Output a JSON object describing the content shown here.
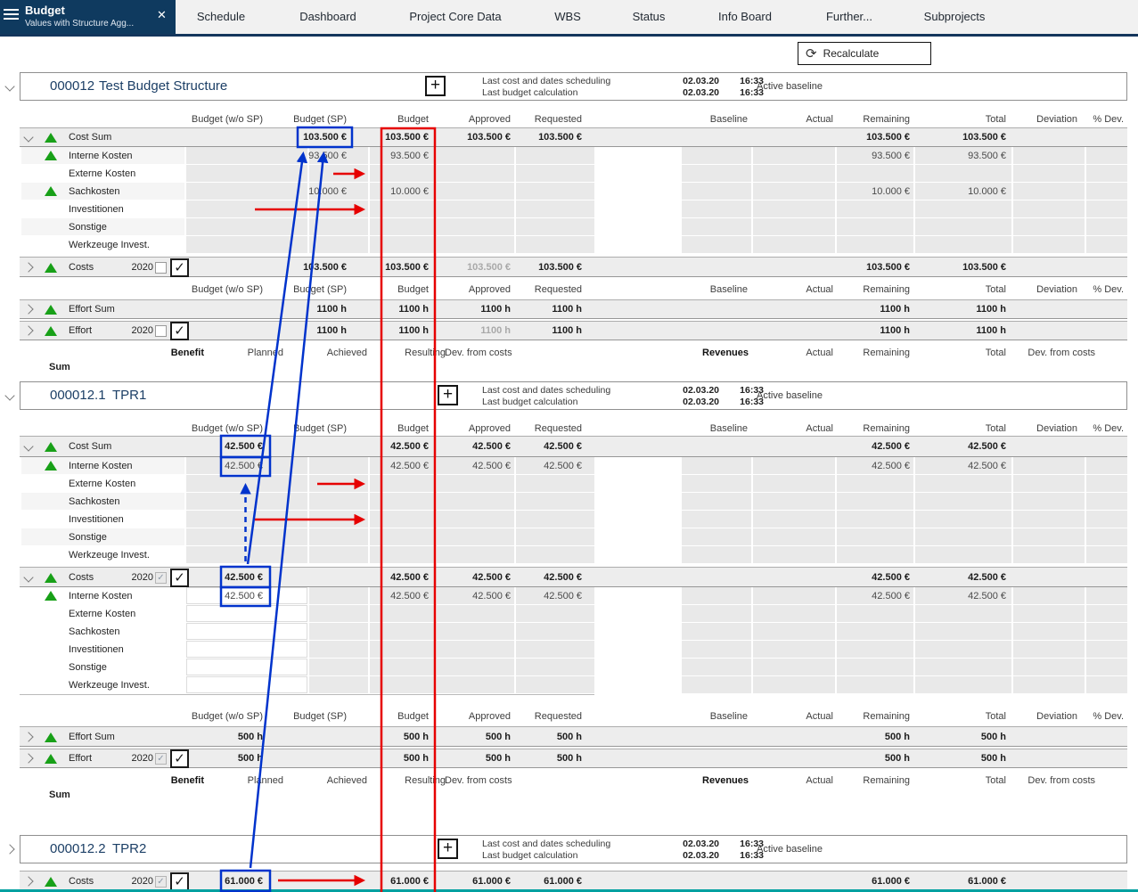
{
  "nav": {
    "active_tab": {
      "title": "Budget",
      "subtitle": "Values with Structure Agg..."
    },
    "tabs": [
      "Schedule",
      "Dashboard",
      "Project Core Data",
      "WBS",
      "Status",
      "Info Board",
      "Further...",
      "Subprojects"
    ]
  },
  "toolbar": {
    "recalculate": "Recalculate"
  },
  "columns": {
    "wosp": "Budget (w/o SP)",
    "sp": "Budget (SP)",
    "budget": "Budget",
    "approved": "Approved",
    "requested": "Requested",
    "baseline": "Baseline",
    "actual": "Actual",
    "remaining": "Remaining",
    "total": "Total",
    "deviation": "Deviation",
    "pdev": "% Dev."
  },
  "benefit": {
    "benefit": "Benefit",
    "planned": "Planned",
    "achieved": "Achieved",
    "resulting": "Resulting",
    "dev_from_costs": "Dev. from costs",
    "revenues": "Revenues",
    "actual": "Actual",
    "remaining": "Remaining",
    "total": "Total",
    "dev_from_costs_right": "Dev. from costs",
    "sum": "Sum"
  },
  "info": {
    "scheduling_label": "Last cost and dates scheduling",
    "calculation_label": "Last budget calculation",
    "baseline_label": "Active baseline",
    "date": "02.03.20",
    "time": "16:33"
  },
  "icons": {
    "menu": "hamburger",
    "close": "✕",
    "plus": "+",
    "recalculate": "⟳",
    "chevron_down": "v",
    "chevron_right": ">",
    "triangle_up": "▲",
    "checkmark": "✓"
  },
  "colors": {
    "annotation_red": "#e60000",
    "annotation_blue": "#0033cc",
    "triangle_green": "#18a018",
    "nav_navy": "#0f3a5f",
    "teal_bar": "#00a0a0"
  },
  "projects": [
    {
      "id": "000012",
      "name": "Test Budget Structure",
      "expanded": true,
      "rows": [
        {
          "kind": "columns_header"
        },
        {
          "kind": "row",
          "style": "sum",
          "chevron": "down",
          "triangle": true,
          "label": "Cost Sum",
          "values": {
            "sp": "103.500 €",
            "budget": "103.500 €",
            "approved": "103.500 €",
            "requested": "103.500 €",
            "remaining": "103.500 €",
            "total": "103.500 €"
          }
        },
        {
          "kind": "row",
          "style": "sub",
          "triangle": true,
          "label": "Interne Kosten",
          "values": {
            "sp": "93.500 €",
            "budget": "93.500 €",
            "remaining": "93.500 €",
            "total": "93.500 €"
          }
        },
        {
          "kind": "row",
          "style": "sub",
          "label": "Externe Kosten",
          "values": {}
        },
        {
          "kind": "row",
          "style": "sub",
          "triangle": true,
          "label": "Sachkosten",
          "values": {
            "sp": "10.000 €",
            "budget": "10.000 €",
            "remaining": "10.000 €",
            "total": "10.000 €"
          }
        },
        {
          "kind": "row",
          "style": "sub",
          "label": "Investitionen",
          "values": {}
        },
        {
          "kind": "row",
          "style": "sub",
          "label": "Sonstige",
          "values": {}
        },
        {
          "kind": "row",
          "style": "sub",
          "label": "Werkzeuge Invest.",
          "values": {}
        },
        {
          "kind": "row",
          "style": "sum",
          "chevron": "right",
          "triangle": true,
          "label": "Costs",
          "year": "2020",
          "checkbox_small": "unchecked",
          "checkbox_large": "checked",
          "approved_muted": true,
          "values": {
            "sp": "103.500 €",
            "budget": "103.500 €",
            "approved": "103.500 €",
            "requested": "103.500 €",
            "remaining": "103.500 €",
            "total": "103.500 €"
          }
        },
        {
          "kind": "columns_header"
        },
        {
          "kind": "row",
          "style": "sum",
          "chevron": "right",
          "triangle": true,
          "label": "Effort Sum",
          "values": {
            "sp": "1100 h",
            "budget": "1100 h",
            "approved": "1100 h",
            "requested": "1100 h",
            "remaining": "1100 h",
            "total": "1100 h"
          }
        },
        {
          "kind": "row",
          "style": "sum",
          "chevron": "right",
          "triangle": true,
          "label": "Effort",
          "year": "2020",
          "checkbox_small": "unchecked",
          "checkbox_large": "checked",
          "approved_muted": true,
          "values": {
            "sp": "1100 h",
            "budget": "1100 h",
            "approved": "1100 h",
            "requested": "1100 h",
            "remaining": "1100 h",
            "total": "1100 h"
          }
        },
        {
          "kind": "benefit_header"
        },
        {
          "kind": "sum_label"
        }
      ]
    },
    {
      "id": "000012.1",
      "name": "TPR1",
      "expanded": true,
      "rows": [
        {
          "kind": "columns_header"
        },
        {
          "kind": "row",
          "style": "sum",
          "chevron": "down",
          "triangle": true,
          "label": "Cost Sum",
          "values": {
            "wosp": "42.500 €",
            "budget": "42.500 €",
            "approved": "42.500 €",
            "requested": "42.500 €",
            "remaining": "42.500 €",
            "total": "42.500 €"
          }
        },
        {
          "kind": "row",
          "style": "sub",
          "triangle": true,
          "label": "Interne Kosten",
          "values": {
            "wosp": "42.500 €",
            "budget": "42.500 €",
            "approved": "42.500 €",
            "requested": "42.500 €",
            "remaining": "42.500 €",
            "total": "42.500 €"
          }
        },
        {
          "kind": "row",
          "style": "sub",
          "label": "Externe Kosten",
          "values": {}
        },
        {
          "kind": "row",
          "style": "sub",
          "label": "Sachkosten",
          "values": {}
        },
        {
          "kind": "row",
          "style": "sub",
          "label": "Investitionen",
          "values": {}
        },
        {
          "kind": "row",
          "style": "sub",
          "label": "Sonstige",
          "values": {}
        },
        {
          "kind": "row",
          "style": "sub",
          "label": "Werkzeuge Invest.",
          "values": {}
        },
        {
          "kind": "row",
          "style": "sum",
          "chevron": "down",
          "triangle": true,
          "label": "Costs",
          "year": "2020",
          "checkbox_small": "checked_gray",
          "checkbox_large": "checked",
          "values": {
            "wosp": "42.500 €",
            "budget": "42.500 €",
            "approved": "42.500 €",
            "requested": "42.500 €",
            "remaining": "42.500 €",
            "total": "42.500 €"
          }
        },
        {
          "kind": "row",
          "style": "sub_edit",
          "triangle": true,
          "label": "Interne Kosten",
          "values": {
            "wosp": "42.500 €",
            "budget": "42.500 €",
            "approved": "42.500 €",
            "requested": "42.500 €",
            "remaining": "42.500 €",
            "total": "42.500 €"
          }
        },
        {
          "kind": "row",
          "style": "sub_edit",
          "label": "Externe Kosten",
          "values": {}
        },
        {
          "kind": "row",
          "style": "sub_edit",
          "label": "Sachkosten",
          "values": {}
        },
        {
          "kind": "row",
          "style": "sub_edit",
          "label": "Investitionen",
          "values": {}
        },
        {
          "kind": "row",
          "style": "sub_edit",
          "label": "Sonstige",
          "values": {}
        },
        {
          "kind": "row",
          "style": "sub_edit",
          "label": "Werkzeuge Invest.",
          "values": {}
        },
        {
          "kind": "columns_header"
        },
        {
          "kind": "row",
          "style": "sum",
          "chevron": "right",
          "triangle": true,
          "label": "Effort Sum",
          "values": {
            "wosp": "500 h",
            "budget": "500 h",
            "approved": "500 h",
            "requested": "500 h",
            "remaining": "500 h",
            "total": "500 h"
          }
        },
        {
          "kind": "row",
          "style": "sum",
          "chevron": "right",
          "triangle": true,
          "label": "Effort",
          "year": "2020",
          "checkbox_small": "checked_gray",
          "checkbox_large": "checked",
          "values": {
            "wosp": "500 h",
            "budget": "500 h",
            "approved": "500 h",
            "requested": "500 h",
            "remaining": "500 h",
            "total": "500 h"
          }
        },
        {
          "kind": "benefit_header"
        },
        {
          "kind": "sum_label"
        }
      ]
    },
    {
      "id": "000012.2",
      "name": "TPR2",
      "expanded": false,
      "rows": [
        {
          "kind": "row",
          "style": "sum",
          "chevron": "right",
          "triangle": true,
          "label": "Costs",
          "year": "2020",
          "checkbox_small": "checked_gray",
          "checkbox_large": "checked",
          "values": {
            "wosp": "61.000 €",
            "budget": "61.000 €",
            "approved": "61.000 €",
            "requested": "61.000 €",
            "remaining": "61.000 €",
            "total": "61.000 €"
          }
        }
      ]
    }
  ]
}
